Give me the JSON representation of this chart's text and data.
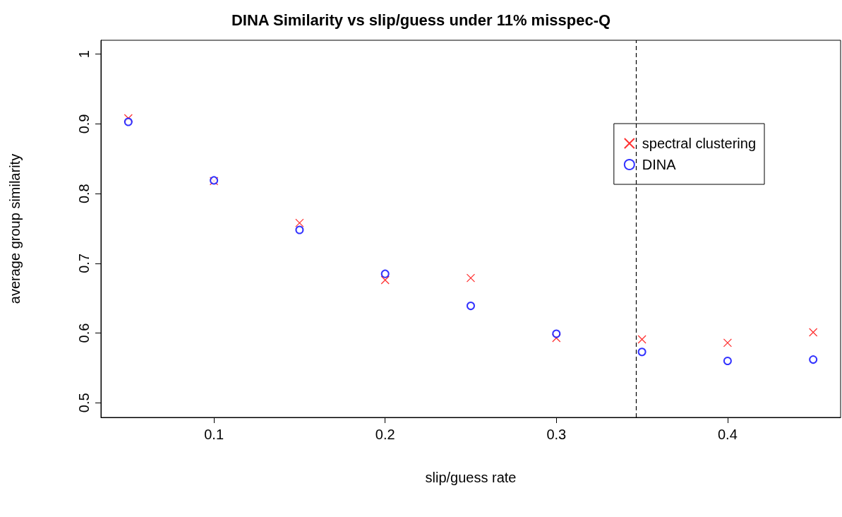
{
  "chart_data": {
    "type": "scatter",
    "title": "DINA Similarity vs slip/guess under 11% misspec-Q",
    "xlabel": "slip/guess rate",
    "ylabel": "average group similarity",
    "x": [
      0.05,
      0.1,
      0.15,
      0.2,
      0.25,
      0.3,
      0.35,
      0.4,
      0.45
    ],
    "series": [
      {
        "name": "spectral clustering",
        "color": "#ff0000",
        "marker": "cross",
        "values": [
          0.908,
          0.818,
          0.758,
          0.676,
          0.679,
          0.593,
          0.591,
          0.586,
          0.601
        ]
      },
      {
        "name": "DINA",
        "color": "#0000ff",
        "marker": "circle",
        "values": [
          0.903,
          0.819,
          0.748,
          0.685,
          0.639,
          0.599,
          0.573,
          0.56,
          0.562
        ]
      }
    ],
    "xlim": [
      0.034,
      0.466
    ],
    "xticks": [
      0.1,
      0.2,
      0.3,
      0.4
    ],
    "ylim": [
      0.479,
      1.02
    ],
    "yticks": [
      0.5,
      0.6,
      0.7,
      0.8,
      0.9,
      1.0
    ],
    "ref_lines": [
      {
        "axis": "x",
        "value": 0.3465,
        "label": null,
        "color": "#000000",
        "line_style": "dashed"
      }
    ],
    "grid": false,
    "legend": "top right"
  }
}
